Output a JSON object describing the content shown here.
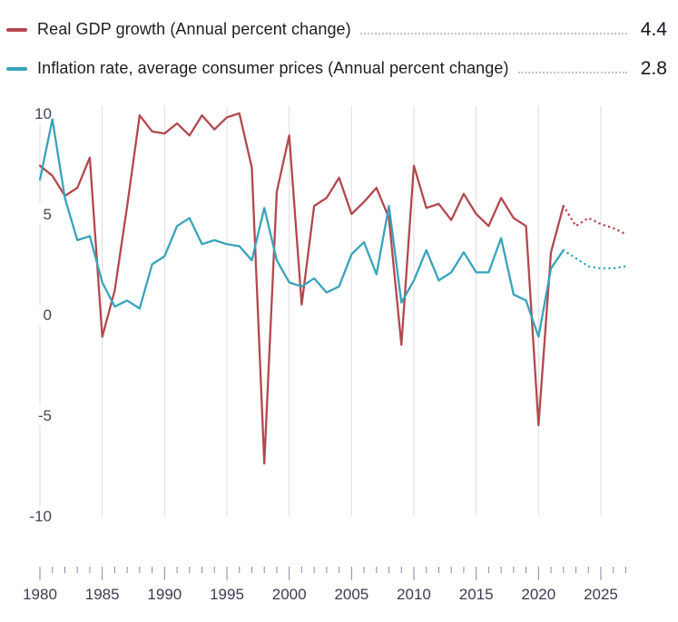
{
  "legend": {
    "selected_year_values": [
      "4.4",
      "2.8"
    ]
  },
  "chart_data": {
    "type": "line",
    "title": "",
    "xlabel": "",
    "ylabel": "",
    "x": [
      1980,
      1981,
      1982,
      1983,
      1984,
      1985,
      1986,
      1987,
      1988,
      1989,
      1990,
      1991,
      1992,
      1993,
      1994,
      1995,
      1996,
      1997,
      1998,
      1999,
      2000,
      2001,
      2002,
      2003,
      2004,
      2005,
      2006,
      2007,
      2008,
      2009,
      2010,
      2011,
      2012,
      2013,
      2014,
      2015,
      2016,
      2017,
      2018,
      2019,
      2020,
      2021,
      2022,
      2023,
      2024,
      2025,
      2026,
      2027
    ],
    "series": [
      {
        "id": "gdp-growth",
        "name": "Real GDP growth (Annual percent change)",
        "color": "#b2484e",
        "display_value": "4.4",
        "values": [
          7.4,
          6.9,
          5.9,
          6.3,
          7.8,
          -1.1,
          1.2,
          5.4,
          9.9,
          9.1,
          9.0,
          9.5,
          8.9,
          9.9,
          9.2,
          9.8,
          10.0,
          7.3,
          -7.4,
          6.1,
          8.9,
          0.5,
          5.4,
          5.8,
          6.8,
          5.0,
          5.6,
          6.3,
          4.8,
          -1.5,
          7.4,
          5.3,
          5.5,
          4.7,
          6.0,
          5.0,
          4.4,
          5.8,
          4.8,
          4.4,
          -5.5,
          3.1,
          5.4,
          4.4,
          4.8,
          4.5,
          4.3,
          4.0
        ]
      },
      {
        "id": "inflation-rate",
        "name": "Inflation rate, average consumer prices (Annual percent change)",
        "color": "#38a3bb",
        "display_value": "2.8",
        "values": [
          6.7,
          9.7,
          5.8,
          3.7,
          3.9,
          1.6,
          0.4,
          0.7,
          0.3,
          2.5,
          2.9,
          4.4,
          4.8,
          3.5,
          3.7,
          3.5,
          3.4,
          2.7,
          5.3,
          2.7,
          1.6,
          1.4,
          1.8,
          1.1,
          1.4,
          3.0,
          3.6,
          2.0,
          5.4,
          0.6,
          1.7,
          3.2,
          1.7,
          2.1,
          3.1,
          2.1,
          2.1,
          3.8,
          1.0,
          0.7,
          -1.1,
          2.3,
          3.2,
          2.8,
          2.4,
          2.3,
          2.3,
          2.4
        ]
      }
    ],
    "forecast_start_year": 2023,
    "forecast_style": "dotted",
    "ylim": [
      -10,
      10
    ],
    "yticks": [
      10,
      5,
      0,
      -5,
      -10
    ],
    "xtick_labels": [
      1980,
      1985,
      1990,
      1995,
      2000,
      2005,
      2010,
      2015,
      2020,
      2025
    ],
    "xtick_minor_step": 1,
    "xrange": [
      1980,
      2027
    ],
    "grid": "vertical-only",
    "gridline_color": "#dcdcdc",
    "tick_color": "#8787a5",
    "axis_label_color": "#3c3c52",
    "legend_position": "top"
  }
}
